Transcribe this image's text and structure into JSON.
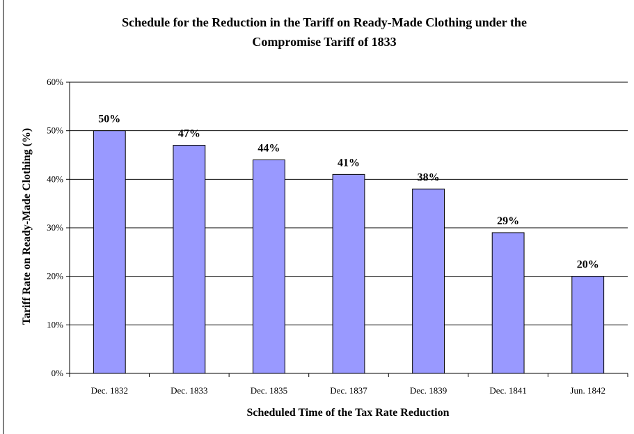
{
  "chart_data": {
    "type": "bar",
    "title_lines": [
      "Schedule for the Reduction in the Tariff on Ready-Made Clothing under the",
      "Compromise Tariff of 1833"
    ],
    "xlabel": "Scheduled Time of the Tax Rate Reduction",
    "ylabel": "Tariff Rate on Ready-Made Clothing (%)",
    "categories": [
      "Dec. 1832",
      "Dec. 1833",
      "Dec. 1835",
      "Dec. 1837",
      "Dec. 1839",
      "Dec. 1841",
      "Jun. 1842"
    ],
    "values": [
      50,
      47,
      44,
      41,
      38,
      29,
      20
    ],
    "data_labels": [
      "50%",
      "47%",
      "44%",
      "41%",
      "38%",
      "29%",
      "20%"
    ],
    "ylim": [
      0,
      60
    ],
    "yticks": [
      0,
      10,
      20,
      30,
      40,
      50,
      60
    ],
    "ytick_labels": [
      "0%",
      "10%",
      "20%",
      "30%",
      "40%",
      "50%",
      "60%"
    ],
    "grid": true,
    "legend": "none",
    "colors": {
      "bar_fill": "#9999ff",
      "bar_stroke": "#000000",
      "grid": "#000000",
      "background": "#ffffff"
    }
  }
}
